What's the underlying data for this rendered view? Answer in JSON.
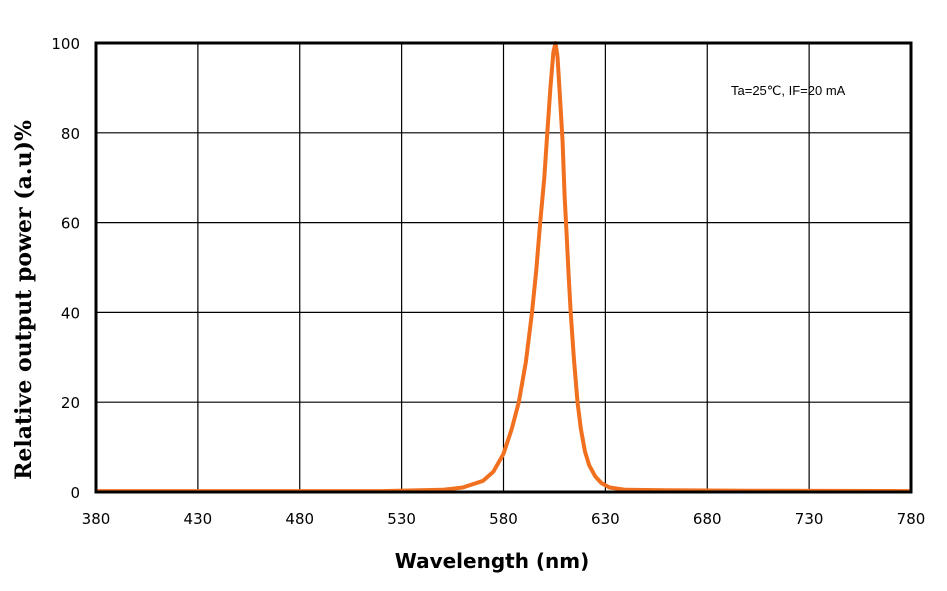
{
  "chart_data": {
    "type": "line",
    "title": "",
    "xlabel": "Wavelength (nm)",
    "ylabel": "Relative output power (a.u)%",
    "xlim": [
      380,
      780
    ],
    "ylim": [
      0,
      100
    ],
    "xticks": [
      380,
      430,
      480,
      530,
      580,
      630,
      680,
      730,
      780
    ],
    "yticks": [
      0,
      20,
      40,
      60,
      80,
      100
    ],
    "grid": true,
    "annotation": "Ta=25℃, IF=20 mA",
    "colors": {
      "line": "#f07020",
      "grid": "#000000"
    },
    "series": [
      {
        "x": [
          380,
          450,
          520,
          550,
          560,
          570,
          575,
          580,
          584,
          587.5,
          591,
          594,
          596,
          598,
          600,
          601.5,
          603,
          604.5,
          605.5,
          606.5,
          608,
          609,
          610,
          611,
          612,
          613,
          614.5,
          616.3,
          618,
          620,
          622,
          625,
          628,
          632,
          640,
          660,
          700,
          780
        ],
        "values": [
          0.2,
          0.2,
          0.2,
          0.5,
          1,
          2.5,
          4.5,
          8.5,
          14,
          20,
          29,
          40,
          49,
          60,
          70,
          80,
          90,
          98,
          100,
          97,
          86,
          78,
          66,
          57,
          48,
          40,
          30,
          20,
          14,
          9,
          6,
          3.5,
          2,
          1,
          0.5,
          0.4,
          0.3,
          0.2
        ]
      }
    ]
  }
}
